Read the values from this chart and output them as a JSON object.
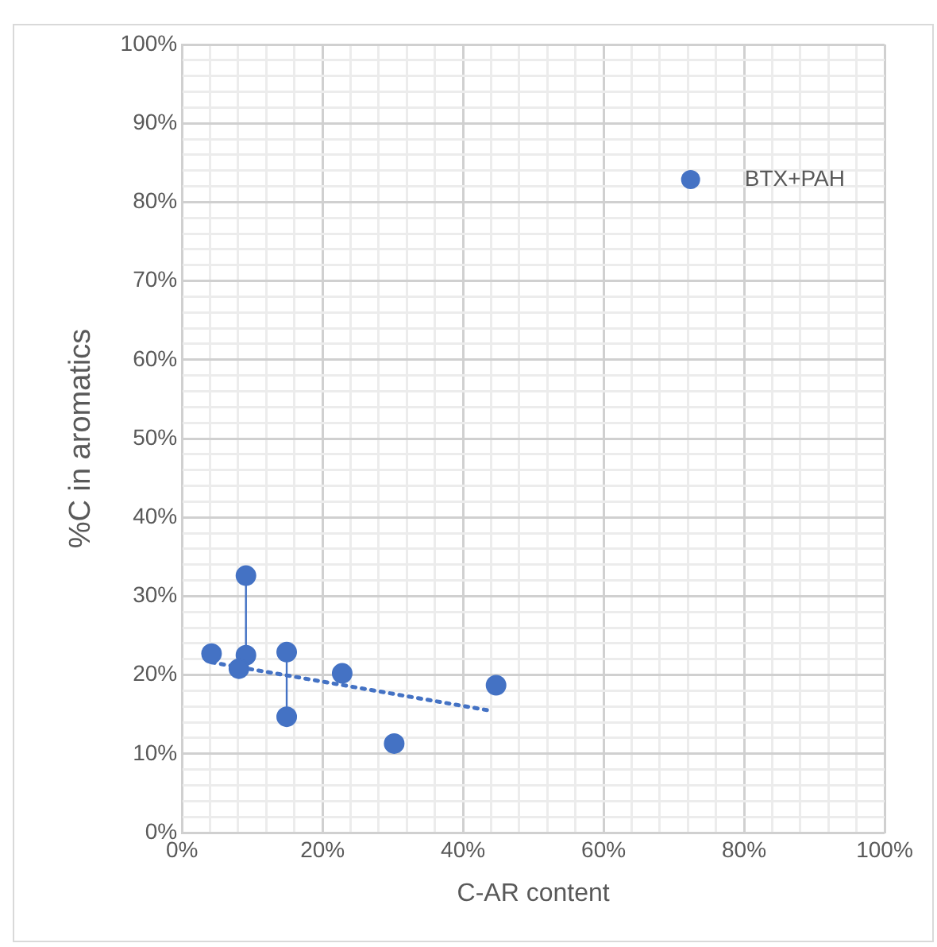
{
  "chart_data": {
    "type": "scatter",
    "xlabel": "C-AR content",
    "ylabel": "%C in aromatics",
    "xlim": [
      0,
      100
    ],
    "ylim": [
      0,
      100
    ],
    "xticks": [
      {
        "value": 0,
        "label": "0%"
      },
      {
        "value": 4,
        "label": null
      },
      {
        "value": 8,
        "label": null
      },
      {
        "value": 12,
        "label": null
      },
      {
        "value": 16,
        "label": null
      },
      {
        "value": 20,
        "label": "20%"
      },
      {
        "value": 24,
        "label": null
      },
      {
        "value": 28,
        "label": null
      },
      {
        "value": 32,
        "label": null
      },
      {
        "value": 36,
        "label": null
      },
      {
        "value": 40,
        "label": "40%"
      },
      {
        "value": 44,
        "label": null
      },
      {
        "value": 48,
        "label": null
      },
      {
        "value": 52,
        "label": null
      },
      {
        "value": 56,
        "label": null
      },
      {
        "value": 60,
        "label": "60%"
      },
      {
        "value": 64,
        "label": null
      },
      {
        "value": 68,
        "label": null
      },
      {
        "value": 72,
        "label": null
      },
      {
        "value": 76,
        "label": null
      },
      {
        "value": 80,
        "label": "80%"
      },
      {
        "value": 84,
        "label": null
      },
      {
        "value": 88,
        "label": null
      },
      {
        "value": 92,
        "label": null
      },
      {
        "value": 96,
        "label": null
      },
      {
        "value": 100,
        "label": "100%"
      }
    ],
    "yticks": [
      {
        "value": 0,
        "label": "0%"
      },
      {
        "value": 2,
        "label": null
      },
      {
        "value": 4,
        "label": null
      },
      {
        "value": 6,
        "label": null
      },
      {
        "value": 8,
        "label": null
      },
      {
        "value": 10,
        "label": "10%"
      },
      {
        "value": 12,
        "label": null
      },
      {
        "value": 14,
        "label": null
      },
      {
        "value": 16,
        "label": null
      },
      {
        "value": 18,
        "label": null
      },
      {
        "value": 20,
        "label": "20%"
      },
      {
        "value": 22,
        "label": null
      },
      {
        "value": 24,
        "label": null
      },
      {
        "value": 26,
        "label": null
      },
      {
        "value": 28,
        "label": null
      },
      {
        "value": 30,
        "label": "30%"
      },
      {
        "value": 32,
        "label": null
      },
      {
        "value": 34,
        "label": null
      },
      {
        "value": 36,
        "label": null
      },
      {
        "value": 38,
        "label": null
      },
      {
        "value": 40,
        "label": "40%"
      },
      {
        "value": 42,
        "label": null
      },
      {
        "value": 44,
        "label": null
      },
      {
        "value": 46,
        "label": null
      },
      {
        "value": 48,
        "label": null
      },
      {
        "value": 50,
        "label": "50%"
      },
      {
        "value": 52,
        "label": null
      },
      {
        "value": 54,
        "label": null
      },
      {
        "value": 56,
        "label": null
      },
      {
        "value": 58,
        "label": null
      },
      {
        "value": 60,
        "label": "60%"
      },
      {
        "value": 62,
        "label": null
      },
      {
        "value": 64,
        "label": null
      },
      {
        "value": 66,
        "label": null
      },
      {
        "value": 68,
        "label": null
      },
      {
        "value": 70,
        "label": "70%"
      },
      {
        "value": 72,
        "label": null
      },
      {
        "value": 74,
        "label": null
      },
      {
        "value": 76,
        "label": null
      },
      {
        "value": 78,
        "label": null
      },
      {
        "value": 80,
        "label": "80%"
      },
      {
        "value": 82,
        "label": null
      },
      {
        "value": 84,
        "label": null
      },
      {
        "value": 86,
        "label": null
      },
      {
        "value": 88,
        "label": null
      },
      {
        "value": 90,
        "label": "90%"
      },
      {
        "value": 92,
        "label": null
      },
      {
        "value": 94,
        "label": null
      },
      {
        "value": 96,
        "label": null
      },
      {
        "value": 98,
        "label": null
      },
      {
        "value": 100,
        "label": "100%"
      }
    ],
    "grid": true,
    "legend": "top right",
    "marker": "circle",
    "series": [
      {
        "name": "BTX+PAH",
        "color": "#4472c4",
        "x": [
          4.2,
          9.1,
          9.1,
          8.1,
          14.9,
          14.9,
          22.8,
          30.2,
          44.7
        ],
        "values": [
          22.7,
          32.6,
          22.5,
          20.8,
          22.9,
          14.7,
          20.2,
          11.3,
          18.7
        ]
      },
      {
        "type": "line",
        "color": "#4472c4",
        "line_style": "solid",
        "marker": "none",
        "x": [
          9.1,
          9.1
        ],
        "values": [
          22.5,
          32.6
        ]
      },
      {
        "type": "line",
        "color": "#4472c4",
        "line_style": "solid",
        "marker": "none",
        "x": [
          14.9,
          14.9
        ],
        "values": [
          14.7,
          22.9
        ]
      },
      {
        "type": "line",
        "color": "#4472c4",
        "line_style": "dotted",
        "marker": "none",
        "x": [
          4.2,
          43.7
        ],
        "values": [
          21.6,
          15.5
        ]
      }
    ]
  }
}
